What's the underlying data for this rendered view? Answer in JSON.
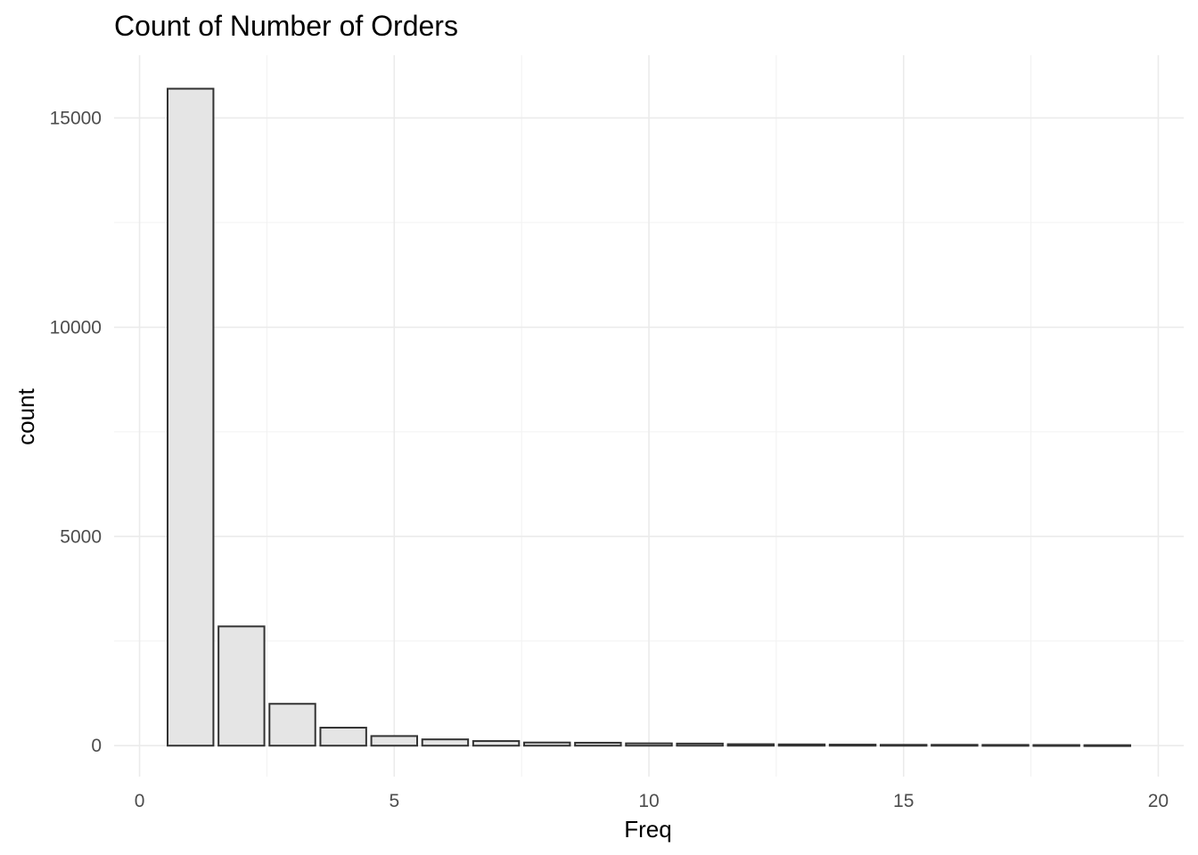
{
  "chart_data": {
    "type": "bar",
    "title": "Count of Number of Orders",
    "xlabel": "Freq",
    "ylabel": "count",
    "x": [
      1,
      2,
      3,
      4,
      5,
      6,
      7,
      8,
      9,
      10,
      11,
      12,
      13,
      14,
      15,
      16,
      17,
      18,
      19
    ],
    "values": [
      15700,
      2850,
      1000,
      430,
      230,
      150,
      110,
      75,
      70,
      55,
      50,
      35,
      30,
      25,
      20,
      20,
      18,
      15,
      12
    ],
    "xlim": [
      -0.5,
      20.5
    ],
    "ylim": [
      -740,
      16500
    ],
    "x_ticks": [
      "0",
      "5",
      "10",
      "15",
      "20"
    ],
    "y_ticks": [
      "0",
      "5000",
      "10000",
      "15000"
    ],
    "grid": true,
    "legend": "none",
    "colors": {
      "bar_fill": "#e5e5e5",
      "bar_outline": "#333333",
      "grid": "#ebebeb",
      "tick_text": "#4d4d4d"
    }
  }
}
